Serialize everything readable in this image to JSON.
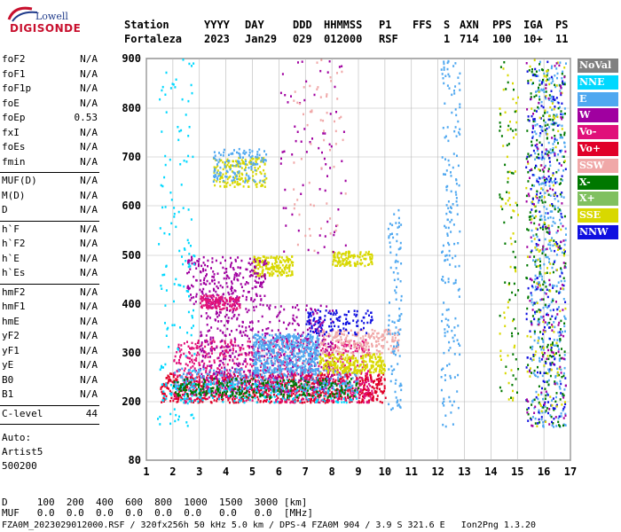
{
  "logo": {
    "top": "Lowell",
    "main": "DIGISONDE"
  },
  "header": {
    "row1": [
      "Station",
      "YYYY",
      "DAY",
      "DDD",
      "HHMMSS",
      "P1",
      "FFS",
      "S",
      "AXN",
      "PPS",
      "IGA",
      "PS"
    ],
    "row2": [
      "Fortaleza",
      "2023",
      "Jan29",
      "029",
      "012000",
      "RSF",
      "1",
      "714",
      "100",
      "10+",
      "11"
    ]
  },
  "params_groups": [
    [
      [
        "foF2",
        "N/A"
      ],
      [
        "foF1",
        "N/A"
      ],
      [
        "foF1p",
        "N/A"
      ],
      [
        "foE",
        "N/A"
      ],
      [
        "foEp",
        "0.53"
      ],
      [
        "fxI",
        "N/A"
      ],
      [
        "foEs",
        "N/A"
      ],
      [
        "fmin",
        "N/A"
      ]
    ],
    [
      [
        "MUF(D)",
        "N/A"
      ],
      [
        "M(D)",
        "N/A"
      ],
      [
        "D",
        "N/A"
      ]
    ],
    [
      [
        "h`F",
        "N/A"
      ],
      [
        "h`F2",
        "N/A"
      ],
      [
        "h`E",
        "N/A"
      ],
      [
        "h`Es",
        "N/A"
      ]
    ],
    [
      [
        "hmF2",
        "N/A"
      ],
      [
        "hmF1",
        "N/A"
      ],
      [
        "hmE",
        "N/A"
      ],
      [
        "yF2",
        "N/A"
      ],
      [
        "yF1",
        "N/A"
      ],
      [
        "yE",
        "N/A"
      ],
      [
        "B0",
        "N/A"
      ],
      [
        "B1",
        "N/A"
      ]
    ],
    [
      [
        "C-level",
        "44"
      ]
    ]
  ],
  "auto": [
    "Auto:",
    "Artist5",
    "500200"
  ],
  "chart_data": {
    "type": "scatter",
    "xlabel": "",
    "ylabel": "",
    "xlim": [
      1,
      17
    ],
    "ylim": [
      80,
      900
    ],
    "x_ticks": [
      1,
      2,
      3,
      4,
      5,
      6,
      7,
      8,
      9,
      10,
      11,
      12,
      13,
      14,
      15,
      16,
      17
    ],
    "y_ticks": [
      80,
      200,
      300,
      400,
      500,
      600,
      700,
      800,
      900
    ],
    "grid": true,
    "legend_position": "right",
    "series": [
      {
        "name": "NoVal",
        "color": "#808080"
      },
      {
        "name": "NNE",
        "color": "#00d8ff"
      },
      {
        "name": "E",
        "color": "#4fa8f0"
      },
      {
        "name": "W",
        "color": "#a000a0"
      },
      {
        "name": "Vo-",
        "color": "#e0107a"
      },
      {
        "name": "Vo+",
        "color": "#e00028"
      },
      {
        "name": "SSW",
        "color": "#f0a8a8"
      },
      {
        "name": "X-",
        "color": "#007800"
      },
      {
        "name": "X+",
        "color": "#80c060"
      },
      {
        "name": "SSE",
        "color": "#d8d800"
      },
      {
        "name": "NNW",
        "color": "#1010e0"
      }
    ],
    "regions": [
      {
        "color": "#e00028",
        "x": [
          1.5,
          10.0
        ],
        "y": [
          200,
          260
        ],
        "density": 900
      },
      {
        "color": "#e0107a",
        "x": [
          2.0,
          9.5
        ],
        "y": [
          200,
          330
        ],
        "density": 800
      },
      {
        "color": "#a000a0",
        "x": [
          3.0,
          8.0
        ],
        "y": [
          220,
          400
        ],
        "density": 500
      },
      {
        "color": "#4fa8f0",
        "x": [
          5.0,
          7.5
        ],
        "y": [
          260,
          340
        ],
        "density": 500
      },
      {
        "color": "#4fa8f0",
        "x": [
          2.0,
          9.0
        ],
        "y": [
          220,
          270
        ],
        "density": 300
      },
      {
        "color": "#00d8ff",
        "x": [
          1.5,
          9.0
        ],
        "y": [
          200,
          240
        ],
        "density": 200
      },
      {
        "color": "#007800",
        "x": [
          2.0,
          9.0
        ],
        "y": [
          210,
          250
        ],
        "density": 250
      },
      {
        "color": "#d8d800",
        "x": [
          7.5,
          10.0
        ],
        "y": [
          260,
          300
        ],
        "density": 250
      },
      {
        "color": "#f0a8a8",
        "x": [
          7.5,
          10.5
        ],
        "y": [
          300,
          350
        ],
        "density": 200
      },
      {
        "color": "#1010e0",
        "x": [
          7.0,
          9.5
        ],
        "y": [
          340,
          390
        ],
        "density": 120
      },
      {
        "color": "#d8d800",
        "x": [
          5.0,
          6.5
        ],
        "y": [
          460,
          500
        ],
        "density": 180
      },
      {
        "color": "#d8d800",
        "x": [
          8.0,
          9.5
        ],
        "y": [
          480,
          510
        ],
        "density": 120
      },
      {
        "color": "#d8d800",
        "x": [
          3.5,
          5.5
        ],
        "y": [
          640,
          700
        ],
        "density": 160
      },
      {
        "color": "#4fa8f0",
        "x": [
          3.5,
          5.5
        ],
        "y": [
          650,
          720
        ],
        "density": 120
      },
      {
        "color": "#a000a0",
        "x": [
          2.5,
          5.5
        ],
        "y": [
          400,
          500
        ],
        "density": 250
      },
      {
        "color": "#e0107a",
        "x": [
          3.0,
          4.5
        ],
        "y": [
          390,
          420
        ],
        "density": 150
      },
      {
        "color": "#4fa8f0",
        "x": [
          15.5,
          16.8
        ],
        "y": [
          150,
          900
        ],
        "density": 400
      },
      {
        "color": "#007800",
        "x": [
          15.3,
          16.8
        ],
        "y": [
          150,
          900
        ],
        "density": 250
      },
      {
        "color": "#1010e0",
        "x": [
          15.3,
          16.8
        ],
        "y": [
          150,
          900
        ],
        "density": 200
      },
      {
        "color": "#d8d800",
        "x": [
          15.3,
          16.8
        ],
        "y": [
          150,
          900
        ],
        "density": 120
      },
      {
        "color": "#a000a0",
        "x": [
          15.3,
          16.8
        ],
        "y": [
          150,
          900
        ],
        "density": 120
      },
      {
        "color": "#4fa8f0",
        "x": [
          12.1,
          12.8
        ],
        "y": [
          150,
          900
        ],
        "density": 180
      },
      {
        "color": "#4fa8f0",
        "x": [
          10.1,
          10.6
        ],
        "y": [
          180,
          600
        ],
        "density": 100
      },
      {
        "color": "#d8d800",
        "x": [
          14.3,
          15.0
        ],
        "y": [
          200,
          900
        ],
        "density": 60
      },
      {
        "color": "#007800",
        "x": [
          14.3,
          15.0
        ],
        "y": [
          200,
          900
        ],
        "density": 60
      },
      {
        "color": "#00d8ff",
        "x": [
          1.4,
          2.8
        ],
        "y": [
          150,
          900
        ],
        "density": 140
      },
      {
        "color": "#a000a0",
        "x": [
          6.0,
          8.5
        ],
        "y": [
          500,
          900
        ],
        "density": 70
      },
      {
        "color": "#f0a8a8",
        "x": [
          6.5,
          8.5
        ],
        "y": [
          500,
          900
        ],
        "density": 60
      }
    ]
  },
  "bottom": {
    "line1": "D     100  200  400  600  800  1000  1500  3000 [km]",
    "line2": "MUF   0.0  0.0  0.0  0.0  0.0  0.0   0.0   0.0  [MHz]",
    "line3": "FZA0M_2023029012000.RSF / 320fx256h 50 kHz 5.0 km / DPS-4 FZA0M 904 / 3.9 S 321.6 E   Ion2Png 1.3.20"
  }
}
